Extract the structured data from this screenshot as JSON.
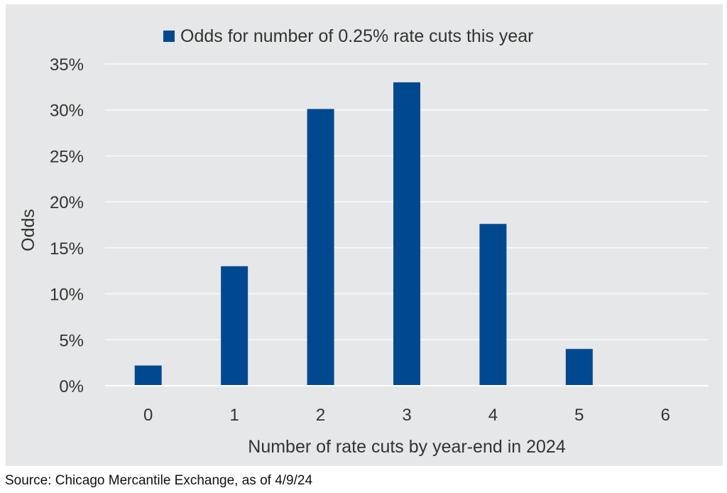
{
  "chart_data": {
    "type": "bar",
    "legend": "Odds for number of 0.25% rate cuts this year",
    "legend_position": "top-center",
    "categories": [
      "0",
      "1",
      "2",
      "3",
      "4",
      "5",
      "6"
    ],
    "series": [
      {
        "name": "Odds for number of 0.25% rate cuts this year",
        "values": [
          2.2,
          13.0,
          30.1,
          33.0,
          17.6,
          4.0,
          0.0
        ]
      }
    ],
    "xlabel": "Number of rate cuts by year-end in 2024",
    "ylabel": "Odds",
    "ylim": [
      0,
      35
    ],
    "yticks": [
      0,
      5,
      10,
      15,
      20,
      25,
      30,
      35
    ],
    "ytick_labels": [
      "0%",
      "5%",
      "10%",
      "15%",
      "20%",
      "25%",
      "30%",
      "35%"
    ],
    "grid": true,
    "colors": {
      "bar": "#004990",
      "background": "#e6e7e8",
      "grid": "#ffffff"
    }
  },
  "source": "Source: Chicago Mercantile Exchange, as of 4/9/24"
}
